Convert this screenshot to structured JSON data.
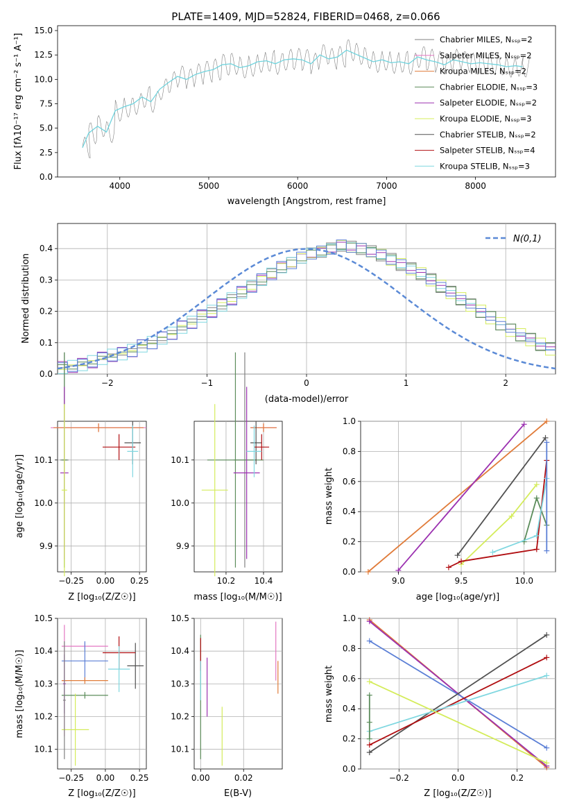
{
  "figure_title": "PLATE=1409, MJD=52824, FIBERID=0468, z=0.066",
  "colors": {
    "chabrier_miles": "#808080",
    "salpeter_miles": "#e377c2",
    "kroupa_miles": "#e07b39",
    "chabrier_elodie": "#5b8c5a",
    "salpeter_elodie": "#9b30b0",
    "kroupa_elodie": "#d4ec5a",
    "chabrier_stelib": "#505050",
    "salpeter_stelib": "#b00d10",
    "kroupa_stelib": "#7fd7e0",
    "extra_blue": "#5b7fd6",
    "spectrum_grey": "#808080",
    "fit_cyan": "#6fd3dd",
    "normal_dashed": "#5b8ad6"
  },
  "chart_data": [
    {
      "type": "line",
      "title": "PLATE=1409, MJD=52824, FIBERID=0468, z=0.066",
      "xlabel": "wavelength [Angstrom, rest frame]",
      "ylabel": "Flux [fλ10⁻¹⁷ erg cm⁻² s⁻¹ A⁻¹]",
      "xlim": [
        3300,
        8900
      ],
      "ylim": [
        0,
        15.5
      ],
      "xticks": [
        "4000",
        "5000",
        "6000",
        "7000",
        "8000"
      ],
      "yticks": [
        "0.0",
        "2.5",
        "5.0",
        "7.5",
        "10.0",
        "12.5",
        "15.0"
      ],
      "legend_position": "top-right",
      "legend": [
        "Chabrier MILES, N_SSP=2",
        "Salpeter MILES, N_SSP=2",
        "Kroupa MILES, N_SSP=2",
        "Chabrier ELODIE, N_SSP=3",
        "Salpeter ELODIE, N_SSP=2",
        "Kroupa ELODIE, N_SSP=3",
        "Chabrier STELIB, N_SSP=2",
        "Salpeter STELIB, N_SSP=4",
        "Kroupa STELIB, N_SSP=3"
      ],
      "spectrum_x": [
        3580,
        3650,
        3750,
        3850,
        3950,
        4050,
        4150,
        4250,
        4350,
        4450,
        4550,
        4650,
        4750,
        4850,
        4950,
        5050,
        5150,
        5250,
        5350,
        5450,
        5550,
        5650,
        5750,
        5850,
        5950,
        6050,
        6150,
        6250,
        6350,
        6450,
        6550,
        6650,
        6750,
        6850,
        6950,
        7050,
        7150,
        7250,
        7350,
        7450,
        7550,
        7650,
        7750,
        7850,
        7950,
        8050,
        8150,
        8250,
        8350,
        8450,
        8530
      ],
      "spectrum_y": [
        3.0,
        4.5,
        5.2,
        4.6,
        6.8,
        7.2,
        7.5,
        8.2,
        7.7,
        9.0,
        9.7,
        10.3,
        10.0,
        10.5,
        10.8,
        11.0,
        11.5,
        11.6,
        11.2,
        11.4,
        11.8,
        11.9,
        11.6,
        12.0,
        12.1,
        12.0,
        11.6,
        12.5,
        12.1,
        12.3,
        13.0,
        12.6,
        12.2,
        11.8,
        12.0,
        11.7,
        11.8,
        11.6,
        12.3,
        12.0,
        11.8,
        11.5,
        12.0,
        11.8,
        11.6,
        11.7,
        11.6,
        11.5,
        11.3,
        11.4,
        11.3
      ]
    },
    {
      "type": "bar",
      "xlabel": "(data-model)/error",
      "ylabel": "Normed distribution",
      "xlim": [
        -2.5,
        2.5
      ],
      "ylim": [
        0,
        0.48
      ],
      "xticks": [
        "−2",
        "−1",
        "0",
        "1",
        "2"
      ],
      "yticks": [
        "0.0",
        "0.1",
        "0.2",
        "0.3",
        "0.4"
      ],
      "grid": true,
      "legend_position": "top-right",
      "legend": [
        "N(0,1)"
      ],
      "bin_width": 0.1,
      "bin_start": -2.5,
      "histogram_values": [
        0.02,
        0.025,
        0.03,
        0.04,
        0.05,
        0.06,
        0.065,
        0.075,
        0.09,
        0.1,
        0.115,
        0.13,
        0.15,
        0.165,
        0.185,
        0.2,
        0.22,
        0.24,
        0.26,
        0.28,
        0.3,
        0.32,
        0.34,
        0.355,
        0.37,
        0.385,
        0.39,
        0.4,
        0.41,
        0.405,
        0.4,
        0.39,
        0.38,
        0.365,
        0.35,
        0.335,
        0.32,
        0.3,
        0.28,
        0.26,
        0.24,
        0.22,
        0.2,
        0.18,
        0.16,
        0.14,
        0.125,
        0.11,
        0.095,
        0.08
      ]
    },
    {
      "type": "scatter",
      "xlabel": "Z [log₁₀(Z/Z☉)]",
      "ylabel": "age  [log₁₀(age/yr)]",
      "xlim": [
        -0.35,
        0.3
      ],
      "ylim": [
        9.84,
        10.19
      ],
      "xticks": [
        "−0.25",
        "0.00",
        "0.25"
      ],
      "yticks": [
        "9.9",
        "10.0",
        "10.1"
      ],
      "grid": true,
      "points": [
        {
          "x": -0.3,
          "y": 10.1,
          "xerr": 0.03,
          "yerr": 0.25,
          "series": "chabrier_miles"
        },
        {
          "x": -0.05,
          "y": 10.175,
          "xerr": 0.35,
          "yerr": 0.01,
          "series": "salpeter_miles"
        },
        {
          "x": -0.05,
          "y": 10.175,
          "xerr": 0.33,
          "yerr": 0.01,
          "series": "kroupa_miles"
        },
        {
          "x": -0.3,
          "y": 10.1,
          "xerr": 0.02,
          "yerr": 0.25,
          "series": "chabrier_elodie"
        },
        {
          "x": -0.3,
          "y": 10.07,
          "xerr": 0.03,
          "yerr": 0.2,
          "series": "salpeter_elodie"
        },
        {
          "x": -0.3,
          "y": 10.03,
          "xerr": 0.02,
          "yerr": 0.2,
          "series": "kroupa_elodie"
        },
        {
          "x": 0.2,
          "y": 10.14,
          "xerr": 0.06,
          "yerr": 0.05,
          "series": "chabrier_stelib"
        },
        {
          "x": 0.1,
          "y": 10.13,
          "xerr": 0.12,
          "yerr": 0.03,
          "series": "salpeter_stelib"
        },
        {
          "x": 0.2,
          "y": 10.12,
          "xerr": 0.04,
          "yerr": 0.06,
          "series": "kroupa_stelib"
        }
      ]
    },
    {
      "type": "scatter",
      "xlabel": "mass [log₁₀(M/M☉)]",
      "ylabel": "",
      "xlim": [
        10.03,
        10.5
      ],
      "ylim": [
        9.84,
        10.19
      ],
      "xticks": [
        "10.2",
        "10.4"
      ],
      "yticks": [
        "9.9",
        "10.0",
        "10.1"
      ],
      "grid": true,
      "points": [
        {
          "x": 10.3,
          "y": 10.1,
          "xerr": 0.06,
          "yerr": 0.25,
          "series": "chabrier_miles"
        },
        {
          "x": 10.4,
          "y": 10.175,
          "xerr": 0.07,
          "yerr": 0.01,
          "series": "salpeter_miles"
        },
        {
          "x": 10.4,
          "y": 10.175,
          "xerr": 0.07,
          "yerr": 0.01,
          "series": "kroupa_miles"
        },
        {
          "x": 10.25,
          "y": 10.1,
          "xerr": 0.15,
          "yerr": 0.25,
          "series": "chabrier_elodie"
        },
        {
          "x": 10.31,
          "y": 10.07,
          "xerr": 0.07,
          "yerr": 0.2,
          "series": "salpeter_elodie"
        },
        {
          "x": 10.14,
          "y": 10.03,
          "xerr": 0.07,
          "yerr": 0.2,
          "series": "kroupa_elodie"
        },
        {
          "x": 10.36,
          "y": 10.14,
          "xerr": 0.03,
          "yerr": 0.05,
          "series": "chabrier_stelib"
        },
        {
          "x": 10.39,
          "y": 10.13,
          "xerr": 0.04,
          "yerr": 0.03,
          "series": "salpeter_stelib"
        },
        {
          "x": 10.35,
          "y": 10.12,
          "xerr": 0.04,
          "yerr": 0.06,
          "series": "kroupa_stelib"
        }
      ]
    },
    {
      "type": "line",
      "xlabel": "age  [log₁₀(age/yr)]",
      "ylabel": "mass weight",
      "xlim": [
        8.7,
        10.25
      ],
      "ylim": [
        0,
        1
      ],
      "xticks": [
        "9.0",
        "9.5",
        "10.0"
      ],
      "yticks": [
        "0.0",
        "0.2",
        "0.4",
        "0.6",
        "0.8",
        "1.0"
      ],
      "grid": true,
      "series": [
        {
          "key": "kroupa_miles",
          "x": [
            8.76,
            10.18
          ],
          "y": [
            0.0,
            1.0
          ]
        },
        {
          "key": "salpeter_elodie",
          "x": [
            9.0,
            10.0
          ],
          "y": [
            0.01,
            0.98
          ]
        },
        {
          "key": "chabrier_stelib",
          "x": [
            9.47,
            10.17
          ],
          "y": [
            0.11,
            0.89
          ]
        },
        {
          "key": "kroupa_elodie",
          "x": [
            9.5,
            9.9,
            10.1
          ],
          "y": [
            0.05,
            0.37,
            0.58
          ]
        },
        {
          "key": "chabrier_elodie",
          "x": [
            10.0,
            10.1,
            10.18
          ],
          "y": [
            0.2,
            0.49,
            0.31
          ]
        },
        {
          "key": "salpeter_stelib",
          "x": [
            9.4,
            9.5,
            10.1,
            10.18
          ],
          "y": [
            0.03,
            0.07,
            0.15,
            0.74
          ]
        },
        {
          "key": "kroupa_stelib",
          "x": [
            9.75,
            10.1,
            10.18
          ],
          "y": [
            0.13,
            0.24,
            0.62
          ]
        },
        {
          "key": "extra_blue",
          "x": [
            10.18,
            10.18
          ],
          "y": [
            0.14,
            0.86
          ]
        }
      ]
    },
    {
      "type": "scatter",
      "xlabel": "Z [log₁₀(Z/Z☉)]",
      "ylabel": "mass [log₁₀(M/M☉)]",
      "xlim": [
        -0.35,
        0.3
      ],
      "ylim": [
        10.04,
        10.5
      ],
      "xticks": [
        "−0.25",
        "0.00",
        "0.25"
      ],
      "yticks": [
        "10.1",
        "10.2",
        "10.3",
        "10.4",
        "10.5"
      ],
      "grid": true,
      "points": [
        {
          "x": -0.3,
          "y": 10.31,
          "xerr": 0.02,
          "yerr": 0.17,
          "series": "salpeter_miles"
        },
        {
          "x": -0.15,
          "y": 10.415,
          "xerr": 0.17,
          "yerr": 0.01,
          "series": "salpeter_miles"
        },
        {
          "x": -0.15,
          "y": 10.37,
          "xerr": 0.17,
          "yerr": 0.06,
          "series": "extra_blue"
        },
        {
          "x": -0.15,
          "y": 10.31,
          "xerr": 0.17,
          "yerr": 0.01,
          "series": "kroupa_miles"
        },
        {
          "x": -0.15,
          "y": 10.265,
          "xerr": 0.17,
          "yerr": 0.01,
          "series": "chabrier_elodie"
        },
        {
          "x": -0.3,
          "y": 10.3,
          "xerr": 0.01,
          "yerr": 0.09,
          "series": "salpeter_elodie"
        },
        {
          "x": -0.22,
          "y": 10.16,
          "xerr": 0.1,
          "yerr": 0.11,
          "series": "kroupa_elodie"
        },
        {
          "x": 0.22,
          "y": 10.355,
          "xerr": 0.06,
          "yerr": 0.07,
          "series": "chabrier_stelib"
        },
        {
          "x": 0.1,
          "y": 10.395,
          "xerr": 0.12,
          "yerr": 0.05,
          "series": "salpeter_stelib"
        },
        {
          "x": 0.1,
          "y": 10.345,
          "xerr": 0.08,
          "yerr": 0.07,
          "series": "kroupa_stelib"
        },
        {
          "x": -0.3,
          "y": 10.25,
          "xerr": 0.01,
          "yerr": 0.18,
          "series": "chabrier_miles"
        }
      ]
    },
    {
      "type": "scatter",
      "xlabel": "E(B-V)",
      "ylabel": "",
      "xlim": [
        -0.003,
        0.038
      ],
      "ylim": [
        10.04,
        10.5
      ],
      "xticks": [
        "0.00",
        "0.02"
      ],
      "yticks": [
        "10.1",
        "10.2",
        "10.3",
        "10.4",
        "10.5"
      ],
      "grid": true,
      "points": [
        {
          "x": 0.0,
          "y": 10.26,
          "xerr": 0,
          "yerr": 0.19,
          "series": "chabrier_elodie"
        },
        {
          "x": 0.0,
          "y": 10.39,
          "xerr": 0,
          "yerr": 0.05,
          "series": "salpeter_stelib"
        },
        {
          "x": 0.003,
          "y": 10.29,
          "xerr": 0,
          "yerr": 0.09,
          "series": "salpeter_elodie"
        },
        {
          "x": 0.01,
          "y": 10.14,
          "xerr": 0,
          "yerr": 0.09,
          "series": "kroupa_elodie"
        },
        {
          "x": 0.0,
          "y": 10.31,
          "xerr": 0,
          "yerr": 0.06,
          "series": "kroupa_stelib"
        },
        {
          "x": 0.035,
          "y": 10.4,
          "xerr": 0,
          "yerr": 0.09,
          "series": "salpeter_miles"
        },
        {
          "x": 0.036,
          "y": 10.32,
          "xerr": 0,
          "yerr": 0.05,
          "series": "kroupa_miles"
        }
      ]
    },
    {
      "type": "line",
      "xlabel": "Z [log₁₀(Z/Z☉)]",
      "ylabel": "mass weight",
      "xlim": [
        -0.33,
        0.33
      ],
      "ylim": [
        0,
        1
      ],
      "xticks": [
        "−0.2",
        "0.0",
        "0.2"
      ],
      "yticks": [
        "0.0",
        "0.2",
        "0.4",
        "0.6",
        "0.8",
        "1.0"
      ],
      "grid": true,
      "series": [
        {
          "key": "kroupa_miles",
          "x": [
            -0.3,
            0.3
          ],
          "y": [
            0.99,
            0.01
          ]
        },
        {
          "key": "salpeter_elodie",
          "x": [
            -0.3,
            0.3
          ],
          "y": [
            0.98,
            0.02
          ]
        },
        {
          "key": "extra_blue",
          "x": [
            -0.3,
            0.3
          ],
          "y": [
            0.85,
            0.14
          ]
        },
        {
          "key": "chabrier_stelib",
          "x": [
            -0.3,
            0.3
          ],
          "y": [
            0.11,
            0.89
          ]
        },
        {
          "key": "salpeter_stelib",
          "x": [
            -0.3,
            0.3
          ],
          "y": [
            0.16,
            0.74
          ]
        },
        {
          "key": "kroupa_stelib",
          "x": [
            -0.3,
            0.3
          ],
          "y": [
            0.25,
            0.62
          ]
        },
        {
          "key": "kroupa_elodie",
          "x": [
            -0.3,
            0.3
          ],
          "y": [
            0.58,
            0.04
          ]
        },
        {
          "key": "chabrier_elodie",
          "x": [
            -0.3,
            -0.3,
            -0.3
          ],
          "y": [
            0.2,
            0.31,
            0.49
          ]
        }
      ]
    }
  ]
}
